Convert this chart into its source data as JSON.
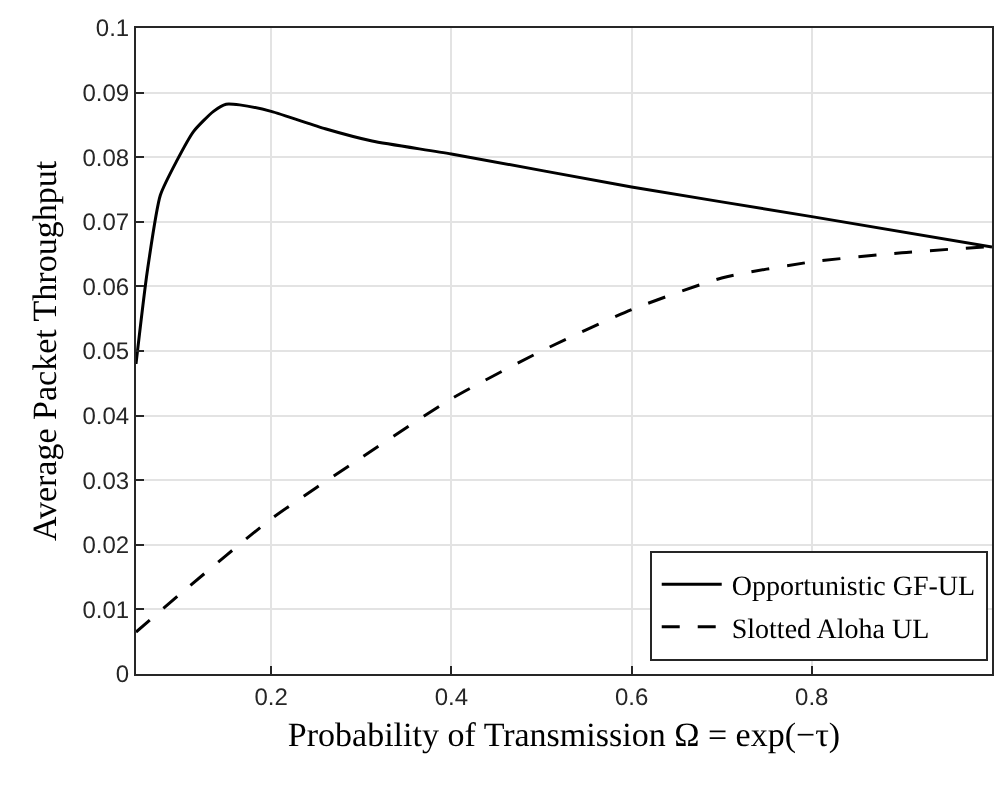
{
  "chart_data": {
    "type": "line",
    "xlabel": "Probability of Transmission Ω = exp(−τ)",
    "ylabel": "Average Packet Throughput",
    "xlim": [
      0.05,
      1
    ],
    "xticks": [
      0.2,
      0.4,
      0.6,
      0.8
    ],
    "ylim": [
      0,
      0.1
    ],
    "yticks": [
      0,
      0.01,
      0.02,
      0.03,
      0.04,
      0.05,
      0.06,
      0.07,
      0.08,
      0.09,
      0.1
    ],
    "grid": true,
    "legend": "bottom right",
    "marker": "none",
    "series": [
      {
        "name": "Opportunistic GF-UL",
        "color": "#000000",
        "line_style": "solid",
        "x": [
          0.05,
          0.0625,
          0.077,
          0.0955,
          0.114,
          0.136,
          0.15,
          0.165,
          0.2,
          0.26,
          0.312,
          0.4,
          0.6,
          0.8,
          1
        ],
        "values": [
          0.048,
          0.0623,
          0.0741,
          0.0795,
          0.084,
          0.0871,
          0.0882,
          0.0881,
          0.0871,
          0.0844,
          0.0825,
          0.0805,
          0.0754,
          0.0708,
          0.0661
        ]
      },
      {
        "name": "Slotted Aloha UL",
        "color": "#000000",
        "line_style": "dashed",
        "x": [
          0.05,
          0.1,
          0.2,
          0.3,
          0.4,
          0.5,
          0.6,
          0.7,
          0.8,
          0.9,
          1
        ],
        "values": [
          0.0065,
          0.0125,
          0.024,
          0.0335,
          0.0426,
          0.05,
          0.0564,
          0.0613,
          0.0638,
          0.0652,
          0.0662
        ]
      }
    ]
  }
}
